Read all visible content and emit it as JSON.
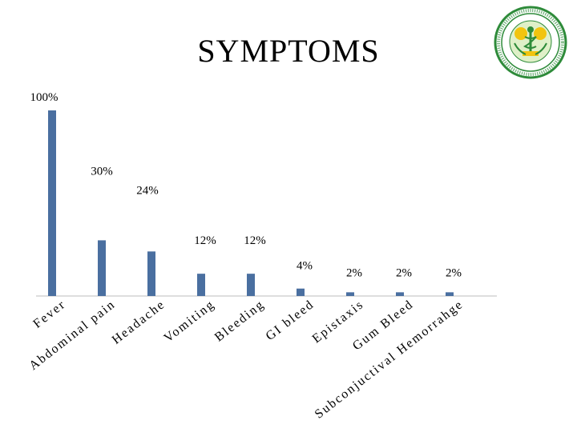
{
  "slide": {
    "title": "SYMPTOMS"
  },
  "logo": {
    "name": "institute-seal-logo",
    "text": "POSTGRADUATE INSTITUTE OF MEDICAL EDUCATION AND RESEARCH CHANDIGARH"
  },
  "colors": {
    "bar": "#4a6fa0",
    "axis": "#bdbdbd",
    "logo_green": "#2e8b3a",
    "logo_yellow": "#f2c40f"
  },
  "chart_data": {
    "type": "bar",
    "title": "",
    "xlabel": "",
    "ylabel": "",
    "ylim": [
      0,
      100
    ],
    "grid": false,
    "categories": [
      "Fever",
      "Abdominal pain",
      "Headache",
      "Vomiting",
      "Bleeding",
      "GI bleed",
      "Epistaxis",
      "Gum Bleed",
      "Subconjuctival Hemorrahge"
    ],
    "values": [
      100,
      30,
      24,
      12,
      12,
      4,
      2,
      2,
      2
    ],
    "data_labels": [
      "100%",
      "30%",
      "24%",
      "12%",
      "12%",
      "4%",
      "2%",
      "2%",
      "2%"
    ]
  }
}
